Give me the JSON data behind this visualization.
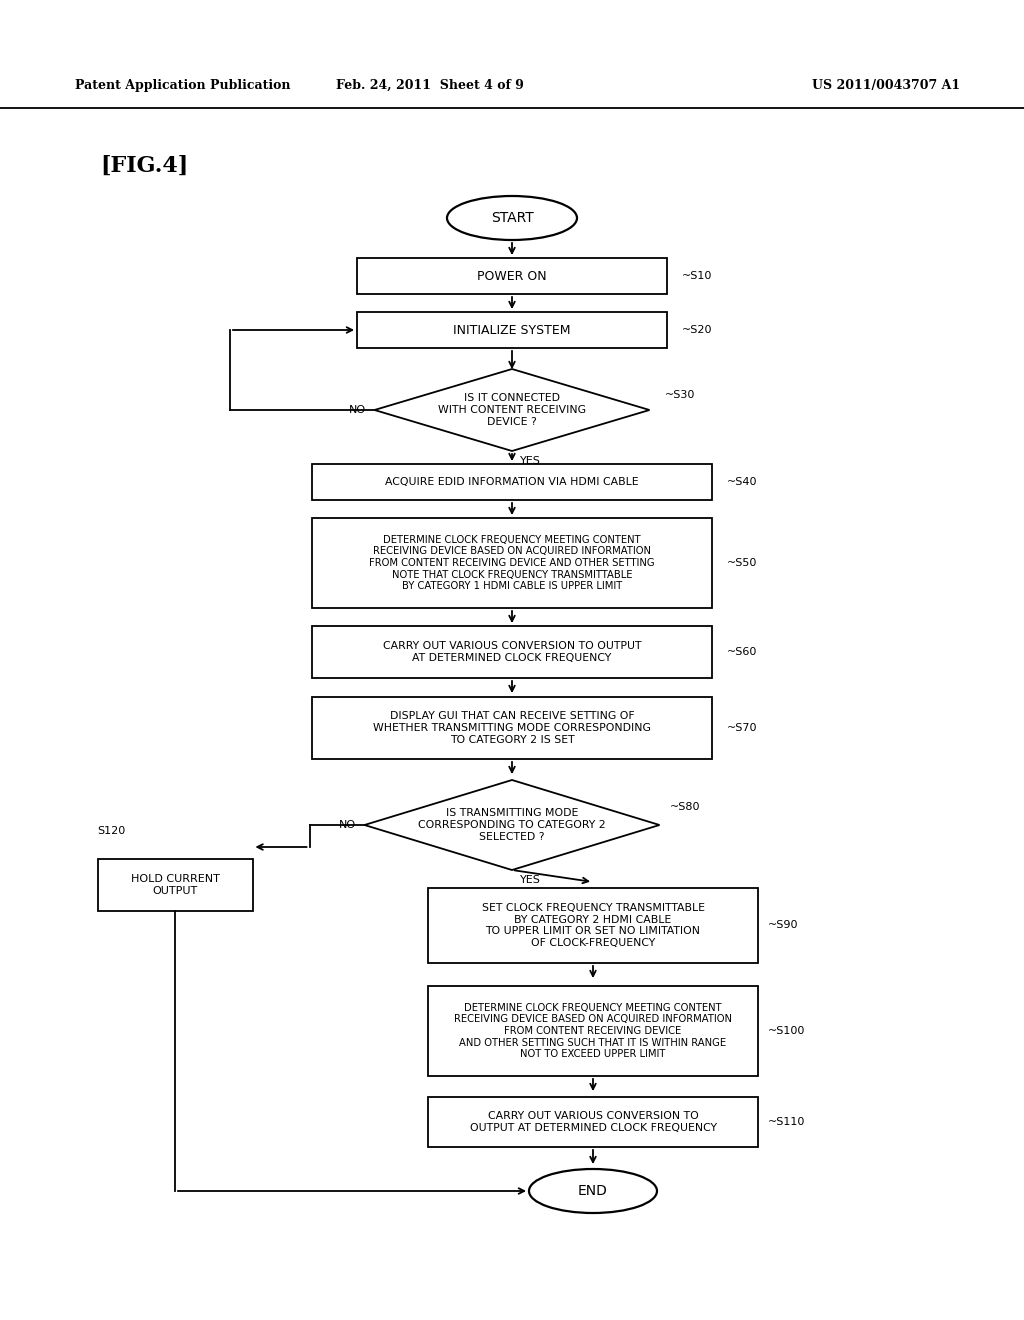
{
  "background": "#ffffff",
  "header_left": "Patent Application Publication",
  "header_mid": "Feb. 24, 2011  Sheet 4 of 9",
  "header_right": "US 2011/0043707 A1",
  "fig_label": "[FIG.4]",
  "lw": 1.3,
  "arrow_ms": 10
}
